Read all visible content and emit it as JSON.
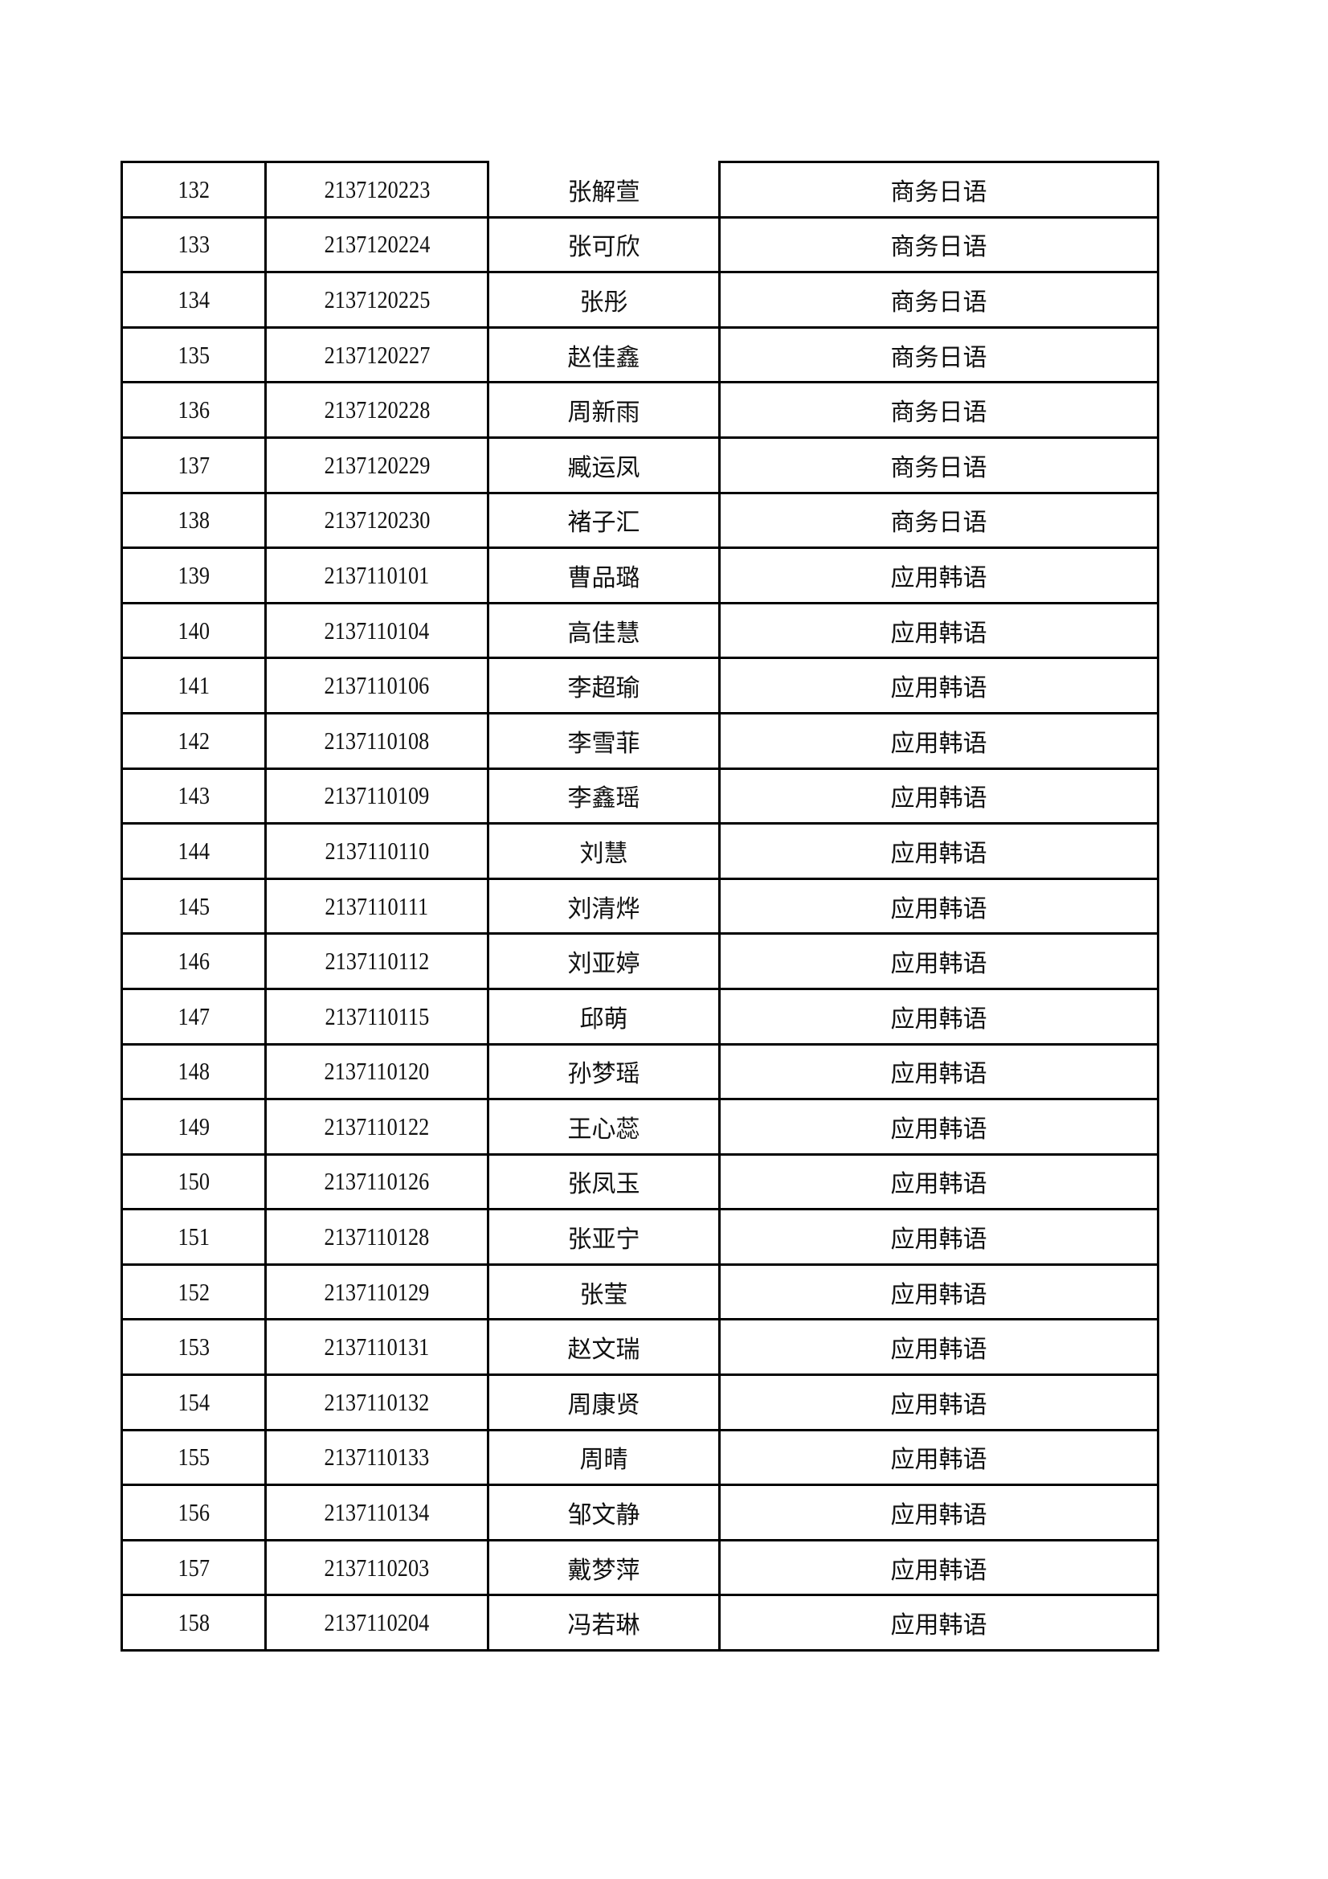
{
  "table": {
    "rows": [
      [
        "132",
        "2137120223",
        "张解萱",
        "商务日语"
      ],
      [
        "133",
        "2137120224",
        "张可欣",
        "商务日语"
      ],
      [
        "134",
        "2137120225",
        "张彤",
        "商务日语"
      ],
      [
        "135",
        "2137120227",
        "赵佳鑫",
        "商务日语"
      ],
      [
        "136",
        "2137120228",
        "周新雨",
        "商务日语"
      ],
      [
        "137",
        "2137120229",
        "臧运凤",
        "商务日语"
      ],
      [
        "138",
        "2137120230",
        "褚子汇",
        "商务日语"
      ],
      [
        "139",
        "2137110101",
        "曹品璐",
        "应用韩语"
      ],
      [
        "140",
        "2137110104",
        "高佳慧",
        "应用韩语"
      ],
      [
        "141",
        "2137110106",
        "李超瑜",
        "应用韩语"
      ],
      [
        "142",
        "2137110108",
        "李雪菲",
        "应用韩语"
      ],
      [
        "143",
        "2137110109",
        "李鑫瑶",
        "应用韩语"
      ],
      [
        "144",
        "2137110110",
        "刘慧",
        "应用韩语"
      ],
      [
        "145",
        "2137110111",
        "刘清烨",
        "应用韩语"
      ],
      [
        "146",
        "2137110112",
        "刘亚婷",
        "应用韩语"
      ],
      [
        "147",
        "2137110115",
        "邱萌",
        "应用韩语"
      ],
      [
        "148",
        "2137110120",
        "孙梦瑶",
        "应用韩语"
      ],
      [
        "149",
        "2137110122",
        "王心蕊",
        "应用韩语"
      ],
      [
        "150",
        "2137110126",
        "张凤玉",
        "应用韩语"
      ],
      [
        "151",
        "2137110128",
        "张亚宁",
        "应用韩语"
      ],
      [
        "152",
        "2137110129",
        "张莹",
        "应用韩语"
      ],
      [
        "153",
        "2137110131",
        "赵文瑞",
        "应用韩语"
      ],
      [
        "154",
        "2137110132",
        "周康贤",
        "应用韩语"
      ],
      [
        "155",
        "2137110133",
        "周晴",
        "应用韩语"
      ],
      [
        "156",
        "2137110134",
        "邹文静",
        "应用韩语"
      ],
      [
        "157",
        "2137110203",
        "戴梦萍",
        "应用韩语"
      ],
      [
        "158",
        "2137110204",
        "冯若琳",
        "应用韩语"
      ]
    ]
  }
}
